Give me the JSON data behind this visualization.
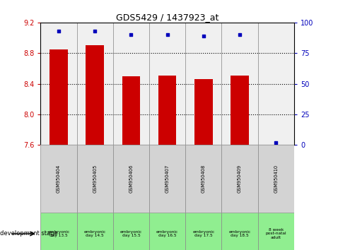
{
  "title": "GDS5429 / 1437923_at",
  "samples": [
    "GSM950404",
    "GSM950405",
    "GSM950406",
    "GSM950407",
    "GSM950408",
    "GSM950409",
    "GSM950410"
  ],
  "transformed_count": [
    8.85,
    8.9,
    8.5,
    8.51,
    8.46,
    8.51,
    7.6
  ],
  "percentile_rank": [
    93,
    93,
    90,
    90,
    89,
    90,
    2
  ],
  "ylim_left": [
    7.6,
    9.2
  ],
  "ylim_right": [
    0,
    100
  ],
  "yticks_left": [
    7.6,
    8.0,
    8.4,
    8.8,
    9.2
  ],
  "yticks_right": [
    0,
    25,
    50,
    75,
    100
  ],
  "bar_color": "#CC0000",
  "dot_color": "#0000BB",
  "stage_labels": [
    "embryonic\nday 13.5",
    "embryonic\nday 14.5",
    "embryonic\nday 15.5",
    "embryonic\nday 16.5",
    "embryonic\nday 17.5",
    "embryonic\nday 18.5",
    "8 week\npost-natal\nadult"
  ],
  "background_color": "#ffffff",
  "gray_color": "#d3d3d3",
  "green_color": "#90EE90",
  "tick_label_color_left": "#CC0000",
  "tick_label_color_right": "#0000BB"
}
